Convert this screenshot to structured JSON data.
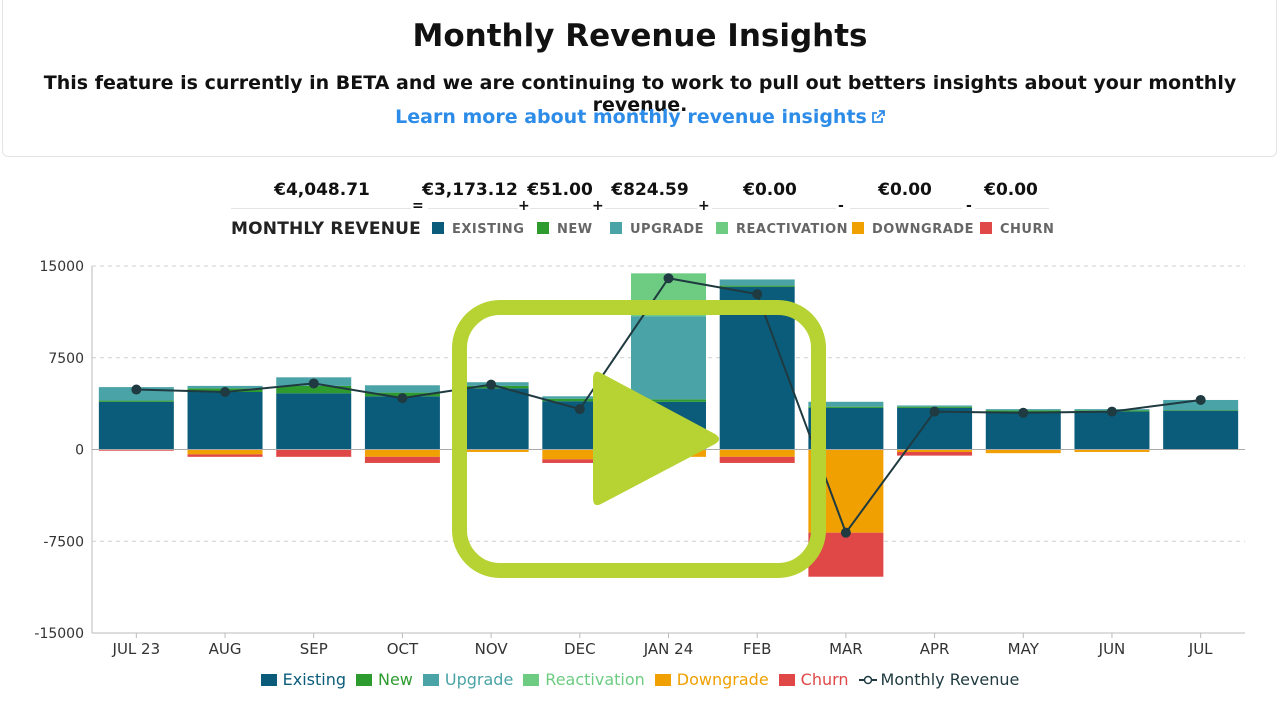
{
  "header": {
    "title": "Monthly Revenue Insights",
    "subtitle": "This feature is currently in BETA and we are continuing to work to pull out betters insights about your monthly revenue.",
    "learn_link": "Learn more about monthly revenue insights",
    "link_icon": "external-link-icon"
  },
  "summary": {
    "monthly_revenue_value": "€4,048.71",
    "monthly_revenue_label": "MONTHLY REVENUE",
    "equals": "=",
    "plus": "+",
    "minus": "-",
    "items": [
      {
        "label": "EXISTING",
        "value": "€3,173.12",
        "color": "#0b5c7a"
      },
      {
        "label": "NEW",
        "value": "€51.00",
        "color": "#2e9b2e"
      },
      {
        "label": "UPGRADE",
        "value": "€824.59",
        "color": "#4aa3a6"
      },
      {
        "label": "REACTIVATION",
        "value": "€0.00",
        "color": "#6dcc82"
      },
      {
        "label": "DOWNGRADE",
        "value": "€0.00",
        "color": "#f0a000"
      },
      {
        "label": "CHURN",
        "value": "€0.00",
        "color": "#e04848"
      }
    ]
  },
  "chart_data": {
    "type": "bar",
    "stacked": true,
    "categories": [
      "JUL 23",
      "AUG",
      "SEP",
      "OCT",
      "NOV",
      "DEC",
      "JAN 24",
      "FEB",
      "MAR",
      "APR",
      "MAY",
      "JUN",
      "JUL"
    ],
    "ylim": [
      -15000,
      15000
    ],
    "yticks": [
      15000,
      7500,
      0,
      -7500,
      -15000
    ],
    "grid": true,
    "legend_position": "bottom",
    "series": [
      {
        "name": "Existing",
        "color": "#0b5c7a",
        "values": [
          3900,
          4700,
          4600,
          4350,
          5000,
          3950,
          3900,
          13300,
          3400,
          3400,
          3100,
          3100,
          3173
        ]
      },
      {
        "name": "New",
        "color": "#2e9b2e",
        "values": [
          100,
          300,
          600,
          300,
          200,
          200,
          200,
          100,
          100,
          100,
          100,
          100,
          51
        ]
      },
      {
        "name": "Upgrade",
        "color": "#4aa3a6",
        "values": [
          1100,
          200,
          700,
          600,
          300,
          200,
          6800,
          500,
          400,
          100,
          100,
          100,
          825
        ]
      },
      {
        "name": "Reactivation",
        "color": "#6dcc82",
        "values": [
          0,
          0,
          0,
          0,
          0,
          0,
          3500,
          0,
          0,
          0,
          0,
          0,
          0
        ]
      },
      {
        "name": "Downgrade",
        "color": "#f0a000",
        "values": [
          0,
          -400,
          0,
          -600,
          -200,
          -800,
          -600,
          -600,
          -6800,
          -200,
          -300,
          -200,
          0
        ]
      },
      {
        "name": "Churn",
        "color": "#e04848",
        "values": [
          -100,
          -200,
          -600,
          -500,
          0,
          -300,
          0,
          -500,
          -3600,
          -300,
          0,
          0,
          0
        ]
      }
    ],
    "line": {
      "name": "Monthly Revenue",
      "color": "#1f3a40",
      "values": [
        4900,
        4700,
        5400,
        4200,
        5300,
        3300,
        14000,
        12700,
        -6800,
        3100,
        3000,
        3100,
        4049
      ]
    }
  }
}
